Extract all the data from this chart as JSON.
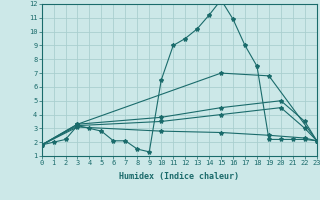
{
  "xlabel": "Humidex (Indice chaleur)",
  "background_color": "#cce8e8",
  "grid_color": "#aacfcf",
  "line_color": "#1a6b6b",
  "xlim": [
    0,
    23
  ],
  "ylim": [
    1,
    12
  ],
  "xticks": [
    0,
    1,
    2,
    3,
    4,
    5,
    6,
    7,
    8,
    9,
    10,
    11,
    12,
    13,
    14,
    15,
    16,
    17,
    18,
    19,
    20,
    21,
    22,
    23
  ],
  "yticks": [
    1,
    2,
    3,
    4,
    5,
    6,
    7,
    8,
    9,
    10,
    11,
    12
  ],
  "lines": [
    {
      "x": [
        0,
        1,
        2,
        3,
        4,
        5,
        6,
        7,
        8,
        9,
        10,
        11,
        12,
        13,
        14,
        15,
        16,
        17,
        18,
        19,
        20,
        21,
        22,
        23
      ],
      "y": [
        1.8,
        2.0,
        2.2,
        3.2,
        3.0,
        2.8,
        2.1,
        2.1,
        1.5,
        1.3,
        6.5,
        9.0,
        9.5,
        10.2,
        11.2,
        12.3,
        10.9,
        9.0,
        7.5,
        2.2,
        2.2,
        2.2,
        2.2,
        2.1
      ]
    },
    {
      "x": [
        0,
        3,
        15,
        19,
        23
      ],
      "y": [
        1.8,
        3.3,
        7.0,
        6.8,
        2.1
      ]
    },
    {
      "x": [
        0,
        3,
        10,
        15,
        20,
        22,
        23
      ],
      "y": [
        1.8,
        3.3,
        3.8,
        4.5,
        5.0,
        3.5,
        2.1
      ]
    },
    {
      "x": [
        0,
        3,
        10,
        15,
        20,
        22,
        23
      ],
      "y": [
        1.8,
        3.2,
        3.5,
        4.0,
        4.5,
        3.0,
        2.1
      ]
    },
    {
      "x": [
        0,
        3,
        10,
        15,
        19,
        22,
        23
      ],
      "y": [
        1.8,
        3.1,
        2.8,
        2.7,
        2.5,
        2.3,
        2.1
      ]
    }
  ]
}
